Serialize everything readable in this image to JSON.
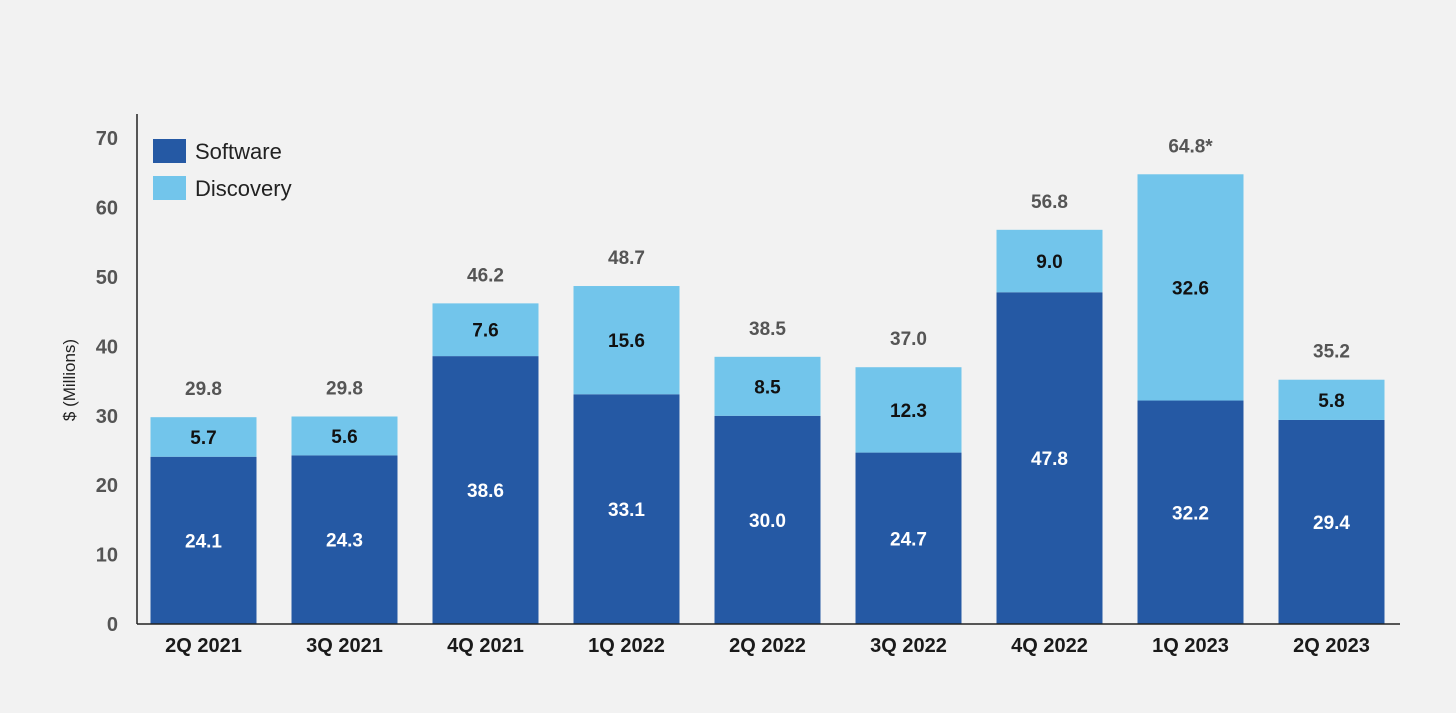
{
  "chart_data": {
    "type": "bar",
    "stacked": true,
    "ylabel": "$ (Millions)",
    "xlabel": "",
    "ylim": [
      0,
      70
    ],
    "yticks": [
      0,
      10,
      20,
      30,
      40,
      50,
      60,
      70
    ],
    "grid": false,
    "legend_position": "top-left",
    "categories": [
      "2Q 2021",
      "3Q 2021",
      "4Q 2021",
      "1Q 2022",
      "2Q 2022",
      "3Q 2022",
      "4Q 2022",
      "1Q 2023",
      "2Q 2023"
    ],
    "series": [
      {
        "name": "Software",
        "color": "#2559a4",
        "label_color": "#ffffff",
        "values": [
          24.1,
          24.3,
          38.6,
          33.1,
          30.0,
          24.7,
          47.8,
          32.2,
          29.4
        ],
        "labels": [
          "24.1",
          "24.3",
          "38.6",
          "33.1",
          "30.0",
          "24.7",
          "47.8",
          "32.2",
          "29.4"
        ]
      },
      {
        "name": "Discovery",
        "color": "#72c5eb",
        "label_color": "#111111",
        "values": [
          5.7,
          5.6,
          7.6,
          15.6,
          8.5,
          12.3,
          9.0,
          32.6,
          5.8
        ],
        "labels": [
          "5.7",
          "5.6",
          "7.6",
          "15.6",
          "8.5",
          "12.3",
          "9.0",
          "32.6",
          "5.8"
        ]
      }
    ],
    "totals": [
      "29.8",
      "29.8",
      "46.2",
      "48.7",
      "38.5",
      "37.0",
      "56.8",
      "64.8*",
      "35.2"
    ]
  }
}
